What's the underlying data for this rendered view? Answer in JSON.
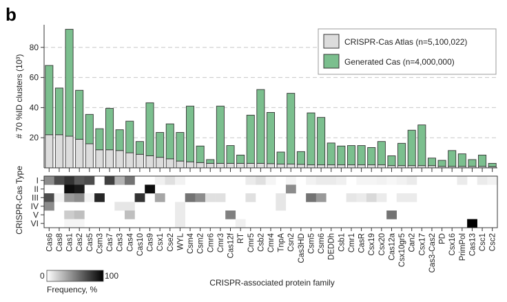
{
  "panel_label": "b",
  "chart_data": {
    "type": "bar",
    "stacked": true,
    "ylabel": "# 70 %ID clusters (10³)",
    "xlabel": "CRISPR-associated protein family",
    "yticks": [
      20,
      40,
      60,
      80
    ],
    "ylim": [
      0,
      95
    ],
    "grid": "horizontal dashed",
    "legend_position": "top-right",
    "categories": [
      "Cas6",
      "Cas8",
      "Cas1",
      "Cas2",
      "Cas5",
      "Csm3",
      "Cas7",
      "Cas3",
      "Cas4",
      "Cas10",
      "Cas9",
      "Csx1",
      "Cse2",
      "WYL",
      "Csm4",
      "Csm2",
      "Cmr6",
      "Cmr3",
      "Cas12f",
      "RT",
      "Cmr5",
      "Csb2",
      "Cmr4",
      "TnpA",
      "Csn2",
      "Cas3HD",
      "Csm5",
      "Csm6",
      "DEDDh",
      "Csb1",
      "Cmr1",
      "CasR",
      "Csx19",
      "Csx20",
      "Cas12a",
      "Csx10gr5",
      "Can2",
      "Csx17",
      "Cas3-Cas2",
      "PD",
      "Csx16",
      "PrimPol",
      "Cas13",
      "Csc1",
      "Csc2"
    ],
    "series": [
      {
        "name": "CRISPR-Cas Atlas (n=5,100,022)",
        "color": "#dcdcdc",
        "values": [
          22,
          22,
          21,
          19,
          16,
          12,
          12,
          11.5,
          10,
          9,
          8,
          7,
          6,
          4.5,
          4,
          3.5,
          3,
          3,
          3,
          3,
          3,
          3,
          2.8,
          2.5,
          2.5,
          2.3,
          2,
          2,
          2,
          2,
          2,
          2,
          2,
          2,
          1.5,
          1.5,
          1.5,
          1.5,
          1.5,
          1,
          1,
          1,
          1,
          1,
          0.8
        ]
      },
      {
        "name": "Generated Cas (n=4,000,000)",
        "color": "#7bbf8e",
        "values": [
          46,
          31,
          71,
          32.5,
          19.5,
          14,
          27.5,
          13.8,
          21,
          8.5,
          35.2,
          16.5,
          23.2,
          19,
          37,
          11,
          2.5,
          38,
          11.8,
          5.5,
          32,
          49,
          34,
          8,
          47,
          8.5,
          34.5,
          31.5,
          14.5,
          12.5,
          12.8,
          12.8,
          11.5,
          15.5,
          6.5,
          14.8,
          23.5,
          27,
          5,
          4,
          10.5,
          8.3,
          4.5,
          7.5,
          2.2
        ]
      }
    ],
    "heatmap": {
      "rows": [
        "I",
        "II",
        "III",
        "IV",
        "V",
        "VI"
      ],
      "ylabel": "CRISPR-Cas Type",
      "colorbar_label": "Frequency, %",
      "colorbar_range": [
        0,
        100
      ],
      "values": [
        [
          45,
          70,
          80,
          65,
          70,
          0,
          75,
          30,
          55,
          0,
          0,
          6,
          12,
          5,
          0,
          0,
          0,
          0,
          0,
          0,
          8,
          12,
          4,
          0,
          4,
          0,
          5,
          8,
          8,
          6,
          0,
          4,
          4,
          5,
          3,
          5,
          8,
          0,
          0,
          0,
          0,
          8,
          0,
          8,
          5
        ],
        [
          0,
          0,
          95,
          90,
          0,
          0,
          0,
          0,
          0,
          0,
          95,
          0,
          0,
          0,
          0,
          0,
          0,
          0,
          0,
          0,
          0,
          0,
          0,
          0,
          45,
          0,
          0,
          0,
          0,
          0,
          0,
          0,
          0,
          0,
          0,
          0,
          0,
          0,
          0,
          0,
          0,
          0,
          0,
          0,
          0
        ],
        [
          70,
          5,
          40,
          45,
          5,
          85,
          0,
          0,
          0,
          80,
          0,
          35,
          0,
          0,
          55,
          45,
          12,
          12,
          0,
          0,
          12,
          0,
          0,
          10,
          0,
          0,
          55,
          40,
          0,
          0,
          10,
          8,
          15,
          8,
          0,
          8,
          8,
          0,
          0,
          0,
          0,
          0,
          0,
          0,
          0
        ],
        [
          45,
          0,
          0,
          0,
          0,
          0,
          0,
          10,
          10,
          0,
          0,
          0,
          0,
          8,
          0,
          0,
          0,
          0,
          0,
          0,
          0,
          0,
          0,
          10,
          0,
          0,
          0,
          0,
          0,
          0,
          0,
          0,
          0,
          0,
          0,
          0,
          0,
          0,
          0,
          0,
          0,
          0,
          0,
          0,
          0
        ],
        [
          0,
          0,
          20,
          25,
          0,
          0,
          0,
          0,
          25,
          0,
          0,
          0,
          0,
          8,
          0,
          0,
          0,
          0,
          50,
          0,
          0,
          0,
          0,
          0,
          0,
          0,
          0,
          0,
          0,
          0,
          0,
          0,
          0,
          0,
          55,
          0,
          0,
          0,
          0,
          0,
          0,
          0,
          0,
          0,
          0
        ],
        [
          0,
          0,
          4,
          4,
          0,
          0,
          0,
          0,
          0,
          0,
          0,
          0,
          0,
          8,
          0,
          0,
          0,
          0,
          0,
          6,
          0,
          0,
          0,
          0,
          0,
          0,
          0,
          0,
          0,
          0,
          0,
          0,
          0,
          0,
          0,
          0,
          0,
          0,
          0,
          0,
          0,
          0,
          100,
          0,
          0
        ]
      ]
    }
  }
}
